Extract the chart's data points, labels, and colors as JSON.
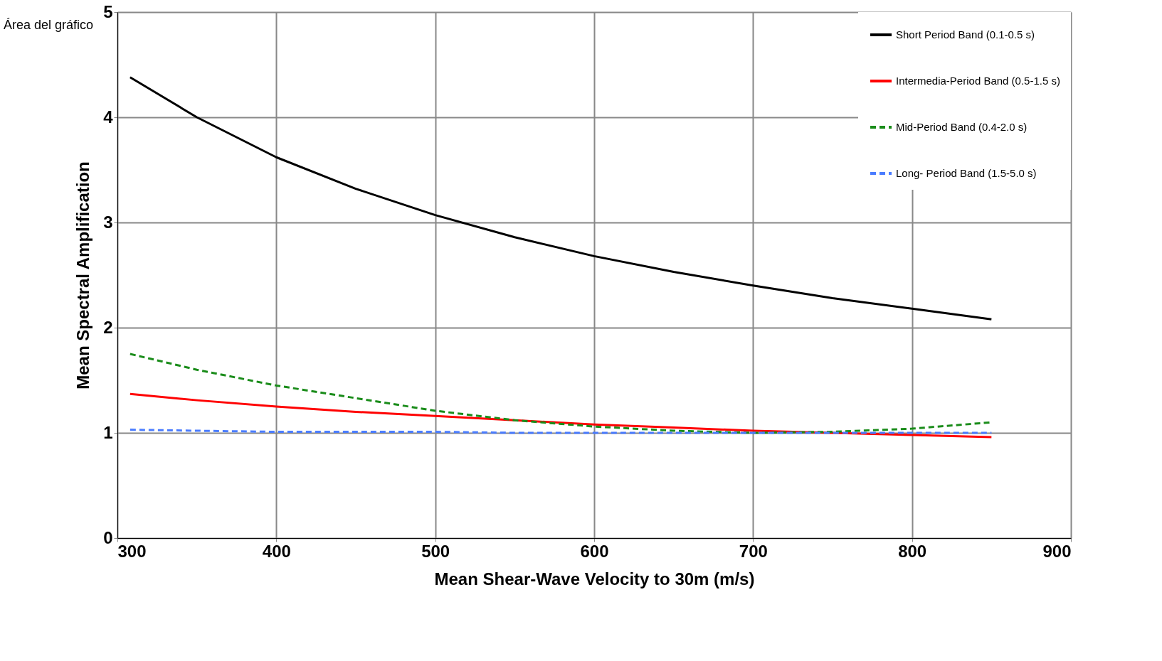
{
  "chart_data": {
    "type": "line",
    "xlabel": "Mean Shear-Wave Velocity to 30m (m/s)",
    "ylabel": "Mean Spectral Amplification",
    "xlim": [
      300,
      900
    ],
    "xticks": [
      300,
      400,
      500,
      600,
      700,
      800,
      900
    ],
    "ylim": [
      0,
      5
    ],
    "yticks": [
      0,
      1,
      2,
      3,
      4,
      5
    ],
    "grid": true,
    "legend": "top right",
    "marker": "none",
    "annotations": [
      "Área del gráfico"
    ],
    "series": [
      {
        "name": "Short Period Band (0.1-0.5 s)",
        "color": "#000000",
        "line_style": "solid",
        "x": [
          308,
          350,
          400,
          450,
          500,
          550,
          600,
          650,
          700,
          750,
          800,
          850
        ],
        "values": [
          4.38,
          4.0,
          3.62,
          3.32,
          3.07,
          2.86,
          2.68,
          2.53,
          2.4,
          2.28,
          2.18,
          2.08
        ]
      },
      {
        "name": "Intermedia-Period Band (0.5-1.5 s)",
        "color": "#ff0000",
        "line_style": "solid",
        "x": [
          308,
          350,
          400,
          450,
          500,
          550,
          600,
          650,
          700,
          750,
          800,
          850
        ],
        "values": [
          1.37,
          1.31,
          1.25,
          1.2,
          1.16,
          1.12,
          1.08,
          1.05,
          1.02,
          1.0,
          0.98,
          0.96
        ]
      },
      {
        "name": "Mid-Period Band (0.4-2.0 s)",
        "color": "#1a8c1a",
        "line_style": "dashed",
        "x": [
          308,
          350,
          400,
          450,
          500,
          550,
          600,
          650,
          700,
          750,
          800,
          850
        ],
        "values": [
          1.75,
          1.6,
          1.45,
          1.33,
          1.21,
          1.12,
          1.06,
          1.02,
          1.0,
          1.01,
          1.04,
          1.1
        ]
      },
      {
        "name": "Long- Period Band (1.5-5.0 s)",
        "color": "#4a7cff",
        "line_style": "dashed",
        "x": [
          308,
          350,
          400,
          450,
          500,
          550,
          600,
          650,
          700,
          750,
          800,
          850
        ],
        "values": [
          1.03,
          1.02,
          1.01,
          1.01,
          1.01,
          1.0,
          1.0,
          1.0,
          1.0,
          1.0,
          1.0,
          1.0
        ]
      }
    ]
  }
}
